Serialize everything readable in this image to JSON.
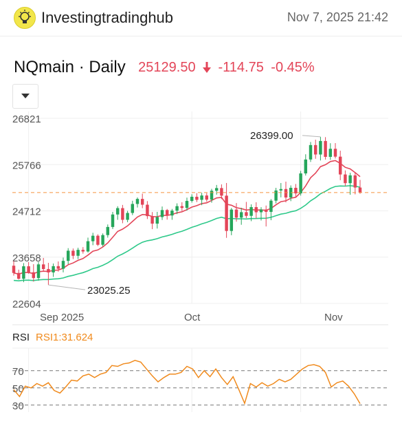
{
  "header": {
    "brand": "Investingtradinghub",
    "logo_icon": "lightbulb-icon",
    "datetime": "Nov 7, 2025 21:42"
  },
  "symbol": {
    "name": "NQmain · Daily",
    "price": "25129.50",
    "change": "-114.75",
    "change_pct": "-0.45%",
    "direction_icon": "arrow-down-icon",
    "color_down": "#e34558"
  },
  "dropdown_icon": "caret-down-icon",
  "chart_data": [
    {
      "type": "candlestick",
      "ylim": [
        22604,
        26821
      ],
      "y_ticks": [
        "26821",
        "25766",
        "24712",
        "23658",
        "22604"
      ],
      "x_ticks": [
        "Sep 2025",
        "Oct",
        "Nov"
      ],
      "current_price_line": 25129.5,
      "annotations": [
        {
          "label": "26399.00",
          "value": 26399.0
        },
        {
          "label": "23025.25",
          "value": 23025.25
        }
      ],
      "colors": {
        "up": "#26a65b",
        "down": "#e34558",
        "ma_fast": "#e34558",
        "ma_slow": "#2ec98a",
        "price_line": "#f5923e"
      },
      "candles": [
        [
          23463,
          23573,
          23236,
          23298
        ],
        [
          23298,
          23373,
          23147,
          23166
        ],
        [
          23166,
          23523,
          23088,
          23450
        ],
        [
          23450,
          23545,
          23281,
          23313
        ],
        [
          23313,
          23498,
          23102,
          23182
        ],
        [
          23182,
          23551,
          23123,
          23493
        ],
        [
          23493,
          23640,
          23335,
          23387
        ],
        [
          23387,
          23528,
          23025,
          23310
        ],
        [
          23310,
          23513,
          23208,
          23453
        ],
        [
          23453,
          23560,
          23327,
          23394
        ],
        [
          23394,
          23649,
          23312,
          23573
        ],
        [
          23573,
          23863,
          23497,
          23805
        ],
        [
          23805,
          23855,
          23614,
          23689
        ],
        [
          23689,
          23872,
          23613,
          23824
        ],
        [
          23824,
          23887,
          23738,
          23787
        ],
        [
          23787,
          24103,
          23763,
          24021
        ],
        [
          24021,
          24213,
          23930,
          24146
        ],
        [
          24146,
          24178,
          23911,
          23940
        ],
        [
          23940,
          24199,
          23900,
          24161
        ],
        [
          24161,
          24403,
          24103,
          24346
        ],
        [
          24346,
          24689,
          24299,
          24630
        ],
        [
          24630,
          24818,
          24509,
          24775
        ],
        [
          24775,
          24848,
          24431,
          24509
        ],
        [
          24509,
          24713,
          24453,
          24665
        ],
        [
          24665,
          24943,
          24616,
          24870
        ],
        [
          24870,
          25019,
          24788,
          24985
        ],
        [
          24985,
          25105,
          24774,
          24853
        ],
        [
          24853,
          24935,
          24527,
          24593
        ],
        [
          24593,
          24686,
          24296,
          24422
        ],
        [
          24422,
          24690,
          24310,
          24571
        ],
        [
          24571,
          24812,
          24505,
          24731
        ],
        [
          24731,
          24756,
          24513,
          24607
        ],
        [
          24607,
          24757,
          24509,
          24718
        ],
        [
          24718,
          24884,
          24638,
          24820
        ],
        [
          24820,
          24909,
          24710,
          24779
        ],
        [
          24779,
          25015,
          24719,
          24939
        ],
        [
          24939,
          25091,
          24901,
          25034
        ],
        [
          25034,
          25117,
          24914,
          24964
        ],
        [
          24964,
          25125,
          24842,
          25063
        ],
        [
          25063,
          25117,
          24920,
          24968
        ],
        [
          24968,
          25215,
          24898,
          25171
        ],
        [
          25171,
          25303,
          25082,
          25232
        ],
        [
          25232,
          25316,
          24981,
          25059
        ],
        [
          25059,
          25348,
          24098,
          24255
        ],
        [
          24255,
          24779,
          24158,
          24742
        ],
        [
          24742,
          24891,
          24468,
          24558
        ],
        [
          24558,
          24783,
          24396,
          24683
        ],
        [
          24683,
          24917,
          24547,
          24599
        ],
        [
          24599,
          24861,
          24478,
          24798
        ],
        [
          24798,
          24908,
          24542,
          24681
        ],
        [
          24681,
          24796,
          24493,
          24743
        ],
        [
          24743,
          24834,
          24357,
          24690
        ],
        [
          24690,
          24982,
          24500,
          24945
        ],
        [
          24945,
          25237,
          24883,
          25177
        ],
        [
          25177,
          25347,
          25020,
          25210
        ],
        [
          25210,
          25379,
          24907,
          25017
        ],
        [
          25017,
          25293,
          24934,
          25238
        ],
        [
          25238,
          25325,
          25023,
          25111
        ],
        [
          25111,
          25624,
          25061,
          25566
        ],
        [
          25566,
          26002,
          25518,
          25883
        ],
        [
          25883,
          26283,
          25828,
          26212
        ],
        [
          26212,
          26335,
          25899,
          25997
        ],
        [
          25997,
          26399,
          25861,
          26305
        ],
        [
          26305,
          26393,
          25882,
          25943
        ],
        [
          25943,
          26254,
          25875,
          26127
        ],
        [
          26127,
          26257,
          25905,
          25948
        ],
        [
          25948,
          26084,
          25412,
          25542
        ],
        [
          25542,
          25634,
          25276,
          25344
        ],
        [
          25344,
          25581,
          25080,
          25522
        ],
        [
          25522,
          25592,
          25089,
          25244
        ],
        [
          25244,
          25417,
          25102,
          25129.5
        ]
      ]
    },
    {
      "type": "line",
      "title": "RSI",
      "series": [
        {
          "name": "RSI1:31.624",
          "values": [
            48,
            40,
            52,
            50,
            55,
            52,
            56,
            47,
            44,
            51,
            59,
            58,
            64,
            66,
            62,
            66,
            68,
            76,
            75,
            78,
            79,
            82,
            80,
            72,
            64,
            57,
            62,
            66,
            66,
            68,
            75,
            72,
            62,
            70,
            63,
            72,
            62,
            54,
            63,
            48,
            32,
            55,
            51,
            56,
            52,
            55,
            60,
            57,
            60,
            66,
            72,
            76,
            77,
            75,
            68,
            51,
            56,
            58,
            52,
            43,
            31.624
          ]
        }
      ],
      "ylim": [
        25,
        85
      ],
      "levels": [
        70,
        50,
        30
      ],
      "level_labels": [
        "70",
        "50",
        "30"
      ],
      "color": "#f08a1c"
    }
  ]
}
